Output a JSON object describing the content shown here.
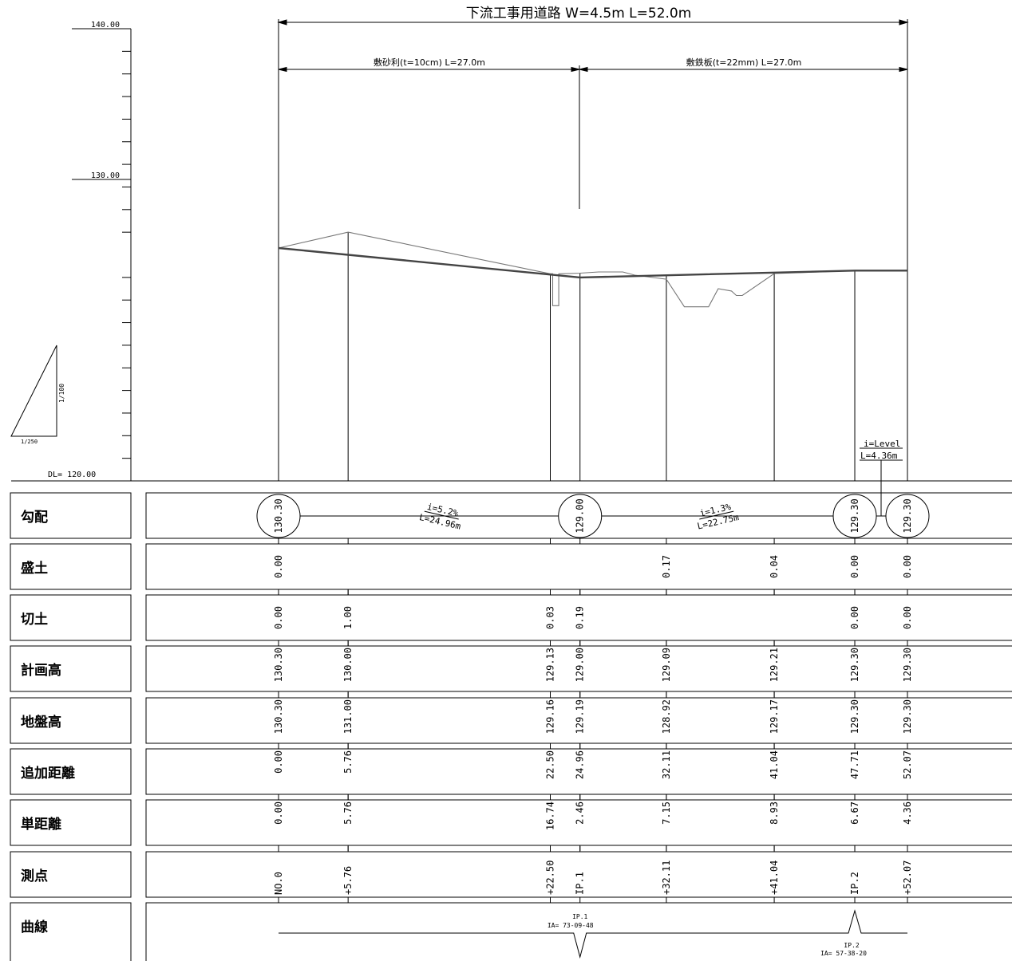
{
  "title": "下流工事用道路 W=4.5m L=52.0m",
  "spans": [
    {
      "label": "敷砂利(t=10cm) L=27.0m"
    },
    {
      "label": "敷鉄板(t=22mm) L=27.0m"
    }
  ],
  "elevation_axis": {
    "top_label": "140.00",
    "mid_label": "130.00",
    "datum_label": "DL= 120.00",
    "top_value": 140.0,
    "datum_value": 120.0
  },
  "scale": {
    "vertical": "1/100",
    "horizontal": "1/250"
  },
  "level_note": {
    "grade": "i=Level",
    "length": "L=4.36m"
  },
  "row_labels": [
    "勾配",
    "盛土",
    "切土",
    "計画高",
    "地盤高",
    "追加距離",
    "単距離",
    "測点",
    "曲線"
  ],
  "stations": [
    {
      "dist": 0.0,
      "fill": "0.00",
      "cut": "0.00",
      "plan": "130.30",
      "ground": "130.30",
      "cum": "0.00",
      "single": "0.00",
      "point": "NO.0"
    },
    {
      "dist": 5.76,
      "fill": "",
      "cut": "1.00",
      "plan": "130.00",
      "ground": "131.00",
      "cum": "5.76",
      "single": "5.76",
      "point": "+5.76"
    },
    {
      "dist": 22.5,
      "fill": "",
      "cut": "0.03",
      "plan": "129.13",
      "ground": "129.16",
      "cum": "22.50",
      "single": "16.74",
      "point": "+22.50"
    },
    {
      "dist": 24.96,
      "fill": "",
      "cut": "0.19",
      "plan": "129.00",
      "ground": "129.19",
      "cum": "24.96",
      "single": "2.46",
      "point": "IP.1"
    },
    {
      "dist": 32.11,
      "fill": "0.17",
      "cut": "",
      "plan": "129.09",
      "ground": "128.92",
      "cum": "32.11",
      "single": "7.15",
      "point": "+32.11"
    },
    {
      "dist": 41.04,
      "fill": "0.04",
      "cut": "",
      "plan": "129.21",
      "ground": "129.17",
      "cum": "41.04",
      "single": "8.93",
      "point": "+41.04"
    },
    {
      "dist": 47.71,
      "fill": "0.00",
      "cut": "0.00",
      "plan": "129.30",
      "ground": "129.30",
      "cum": "47.71",
      "single": "6.67",
      "point": "IP.2"
    },
    {
      "dist": 52.07,
      "fill": "0.00",
      "cut": "0.00",
      "plan": "129.30",
      "ground": "129.30",
      "cum": "52.07",
      "single": "4.36",
      "point": "+52.07"
    }
  ],
  "grade_circles": [
    {
      "dist": 0.0,
      "label": "130.30"
    },
    {
      "dist": 24.96,
      "label": "129.00"
    },
    {
      "dist": 47.71,
      "label": "129.30"
    },
    {
      "dist": 52.07,
      "label": "129.30"
    }
  ],
  "grade_segments": [
    {
      "grade": "i=5.2%",
      "length": "L=24.96m"
    },
    {
      "grade": "i=1.3%",
      "length": "L=22.75m"
    }
  ],
  "curves": [
    {
      "dist": 24.96,
      "name": "IP.1",
      "angle": "IA= 73-09-48",
      "direction": "down"
    },
    {
      "dist": 47.71,
      "name": "IP.2",
      "angle": "IA= 57-38-20",
      "direction": "up"
    }
  ],
  "plan_profile": [
    {
      "dist": 0.0,
      "elev": 130.3
    },
    {
      "dist": 24.96,
      "elev": 129.0
    },
    {
      "dist": 47.71,
      "elev": 129.3
    },
    {
      "dist": 52.07,
      "elev": 129.3
    }
  ],
  "ground_profile": [
    {
      "dist": 0.0,
      "elev": 130.3
    },
    {
      "dist": 5.76,
      "elev": 131.0
    },
    {
      "dist": 22.5,
      "elev": 129.16
    },
    {
      "dist": 22.7,
      "elev": 129.16
    },
    {
      "dist": 22.7,
      "elev": 127.75
    },
    {
      "dist": 23.2,
      "elev": 127.75
    },
    {
      "dist": 23.2,
      "elev": 129.16
    },
    {
      "dist": 24.96,
      "elev": 129.19
    },
    {
      "dist": 26.5,
      "elev": 129.24
    },
    {
      "dist": 28.5,
      "elev": 129.24
    },
    {
      "dist": 29.5,
      "elev": 129.1
    },
    {
      "dist": 32.11,
      "elev": 128.92
    },
    {
      "dist": 33.6,
      "elev": 127.7
    },
    {
      "dist": 35.6,
      "elev": 127.7
    },
    {
      "dist": 36.4,
      "elev": 128.5
    },
    {
      "dist": 37.5,
      "elev": 128.4
    },
    {
      "dist": 37.9,
      "elev": 128.2
    },
    {
      "dist": 38.4,
      "elev": 128.2
    },
    {
      "dist": 41.04,
      "elev": 129.17
    },
    {
      "dist": 47.71,
      "elev": 129.3
    },
    {
      "dist": 52.07,
      "elev": 129.3
    }
  ]
}
